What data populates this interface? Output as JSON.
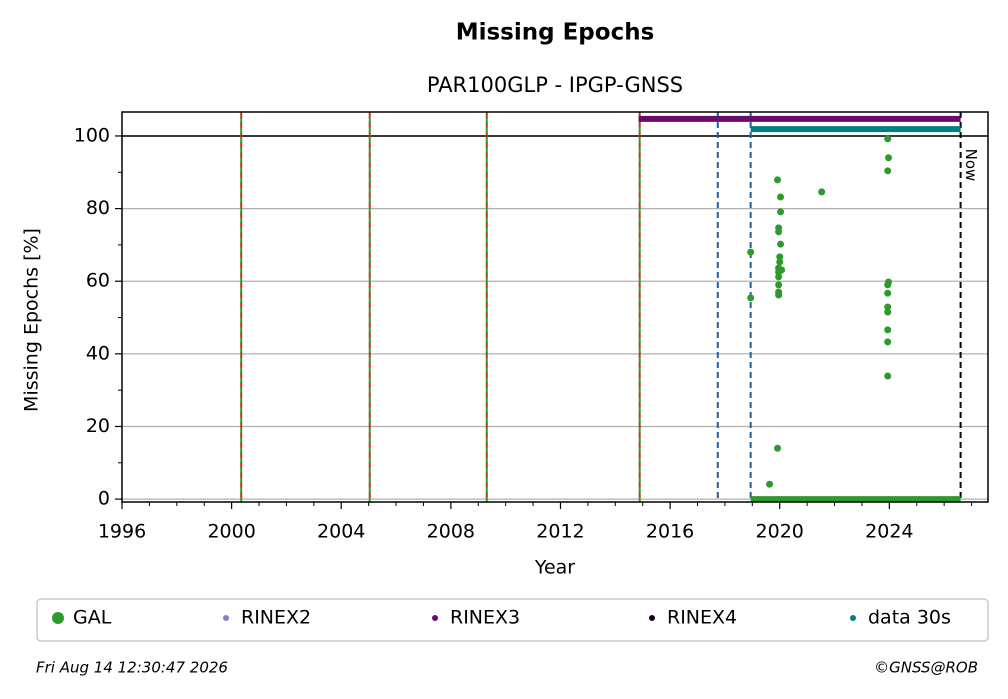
{
  "chart_data": {
    "type": "scatter",
    "title": "Missing Epochs",
    "subtitle": "PAR100GLP - IPGP-GNSS",
    "x_label": "Year",
    "y_label": "Missing Epochs [%]",
    "xlim": [
      1996,
      2027.6
    ],
    "ylim": [
      -0.8,
      106.6
    ],
    "xticks": [
      1996,
      2000,
      2004,
      2008,
      2012,
      2016,
      2020,
      2024
    ],
    "xticks_minor": [
      1997,
      1998,
      1999,
      2001,
      2002,
      2003,
      2005,
      2006,
      2007,
      2009,
      2010,
      2011,
      2013,
      2014,
      2015,
      2017,
      2018,
      2019,
      2021,
      2022,
      2023,
      2025,
      2026,
      2027
    ],
    "yticks": [
      0,
      20,
      40,
      60,
      80,
      100
    ],
    "yticks_minor": [
      10,
      30,
      50,
      70,
      90
    ],
    "grid": true,
    "reference_line": 100,
    "vlines": [
      {
        "x": 2000.35,
        "colors": [
          "#d62728",
          "#2ca02c"
        ]
      },
      {
        "x": 2005.04,
        "colors": [
          "#d62728",
          "#2ca02c"
        ]
      },
      {
        "x": 2009.31,
        "colors": [
          "#d62728",
          "#2ca02c"
        ]
      },
      {
        "x": 2014.89,
        "colors": [
          "#d62728",
          "#2ca02c"
        ]
      },
      {
        "x": 2017.74,
        "colors": [
          "#1f5fa8"
        ]
      },
      {
        "x": 2018.94,
        "colors": [
          "#1f5fa8"
        ]
      }
    ],
    "now": {
      "x": 2026.6,
      "label": "Now"
    },
    "series": [
      {
        "name": "GAL",
        "color": "#2e9a2e",
        "x": [
          2018.94,
          2018.94,
          2019.63,
          2019.92,
          2019.92,
          2019.96,
          2019.96,
          2020.0,
          2020.0,
          2019.96,
          2019.96,
          2019.96,
          2019.96,
          2019.96,
          2019.96,
          2020.03,
          2020.03,
          2020.03,
          2020.07,
          2021.53,
          2023.94,
          2023.97,
          2023.94,
          2023.97,
          2023.94,
          2023.94,
          2023.94,
          2023.94,
          2023.94,
          2023.94,
          2023.94
        ],
        "values": [
          68.0,
          55.4,
          4.1,
          87.9,
          14.0,
          74.7,
          73.6,
          66.7,
          65.3,
          63.6,
          62.5,
          61.2,
          59.0,
          57.0,
          56.2,
          83.2,
          79.1,
          70.2,
          63.1,
          84.6,
          99.2,
          94.0,
          90.4,
          59.8,
          59.0,
          56.7,
          52.9,
          51.5,
          46.6,
          43.3,
          33.9
        ],
        "span": {
          "start": 2018.94,
          "end": 2026.6,
          "value": 0
        }
      },
      {
        "name": "RINEX2",
        "color": "#8a7fbf"
      },
      {
        "name": "RINEX3",
        "color": "#6a0a6a",
        "span": {
          "start": 2014.85,
          "end": 2026.6,
          "value": 104.7
        }
      },
      {
        "name": "RINEX4",
        "color": "#1a0020"
      },
      {
        "name": "data 30s",
        "color": "#008080",
        "span": {
          "start": 2018.94,
          "end": 2026.6,
          "value": 101.9
        }
      }
    ],
    "timestamp": "Fri Aug 14 12:30:47 2026",
    "credit": "©GNSS@ROB"
  }
}
